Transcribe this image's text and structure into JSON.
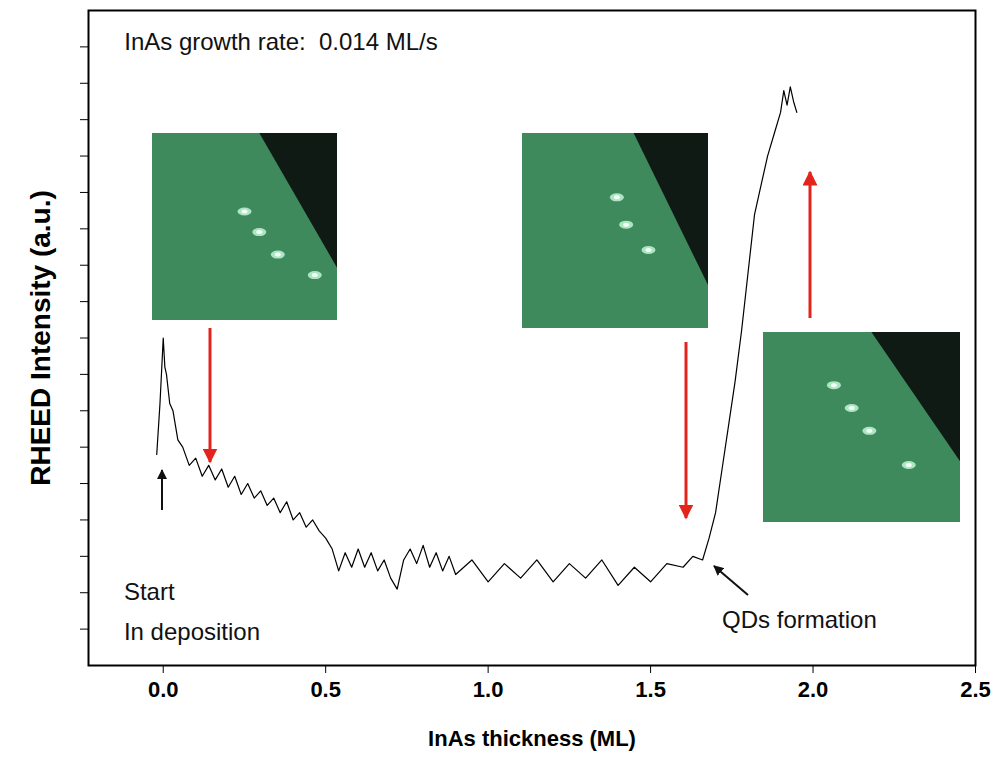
{
  "chart_data": {
    "type": "line",
    "x_label": "InAs thickness (ML)",
    "y_label": "RHEED Intensity (a.u.)",
    "color": "#000000",
    "x": [
      -0.02,
      -0.01,
      0,
      0.005,
      0.01,
      0.02,
      0.03,
      0.045,
      0.06,
      0.08,
      0.1,
      0.12,
      0.14,
      0.16,
      0.18,
      0.2,
      0.22,
      0.24,
      0.26,
      0.28,
      0.3,
      0.32,
      0.34,
      0.36,
      0.38,
      0.4,
      0.42,
      0.44,
      0.46,
      0.48,
      0.5,
      0.52,
      0.54,
      0.56,
      0.58,
      0.6,
      0.62,
      0.64,
      0.66,
      0.68,
      0.7,
      0.72,
      0.74,
      0.76,
      0.78,
      0.8,
      0.82,
      0.84,
      0.86,
      0.88,
      0.9,
      0.95,
      1.0,
      1.05,
      1.1,
      1.15,
      1.2,
      1.25,
      1.3,
      1.35,
      1.4,
      1.45,
      1.5,
      1.55,
      1.6,
      1.63,
      1.66,
      1.68,
      1.7,
      1.72,
      1.74,
      1.76,
      1.78,
      1.8,
      1.82,
      1.84,
      1.86,
      1.88,
      1.9,
      1.91,
      1.92,
      1.93,
      1.94,
      1.95
    ],
    "values": [
      2.9,
      3.6,
      4.5,
      4.1,
      4.0,
      3.6,
      3.5,
      3.1,
      3.0,
      2.75,
      2.85,
      2.6,
      2.75,
      2.55,
      2.7,
      2.45,
      2.6,
      2.35,
      2.5,
      2.3,
      2.4,
      2.2,
      2.3,
      2.1,
      2.25,
      2.0,
      2.1,
      1.9,
      2.0,
      1.85,
      1.75,
      1.6,
      1.3,
      1.55,
      1.35,
      1.6,
      1.35,
      1.55,
      1.3,
      1.45,
      1.2,
      1.05,
      1.45,
      1.6,
      1.4,
      1.65,
      1.35,
      1.55,
      1.3,
      1.5,
      1.25,
      1.45,
      1.15,
      1.4,
      1.2,
      1.45,
      1.15,
      1.4,
      1.2,
      1.45,
      1.1,
      1.35,
      1.15,
      1.4,
      1.35,
      1.5,
      1.45,
      1.75,
      2.1,
      2.7,
      3.3,
      3.9,
      4.6,
      5.4,
      6.2,
      6.6,
      7.0,
      7.3,
      7.6,
      7.9,
      7.7,
      7.95,
      7.75,
      7.6
    ],
    "xlim": [
      -0.23,
      2.5
    ],
    "ylim": [
      0,
      9
    ],
    "xticks": [
      {
        "value": 0,
        "label": "0.0"
      },
      {
        "value": 0.5,
        "label": "0.5"
      },
      {
        "value": 1,
        "label": "1.0"
      },
      {
        "value": 1.5,
        "label": "1.5"
      },
      {
        "value": 2,
        "label": "2.0"
      },
      {
        "value": 2.5,
        "label": "2.5"
      }
    ],
    "yticks": [
      0.5,
      1,
      1.5,
      2,
      2.5,
      3,
      3.5,
      4,
      4.5,
      5,
      5.5,
      6,
      6.5,
      7,
      7.5,
      8,
      8.5
    ],
    "tick_labels": "x",
    "grid": false,
    "annotations": [
      {
        "text": "InAs growth rate:  0.014 ML/s",
        "x": -0.12,
        "y": 8.56
      },
      {
        "text": "Start",
        "x": -0.121,
        "y": 1.0
      },
      {
        "text": "In deposition",
        "x": -0.121,
        "y": 0.45
      },
      {
        "text": "QDs formation",
        "x": 1.72,
        "y": 0.62
      }
    ]
  }
}
